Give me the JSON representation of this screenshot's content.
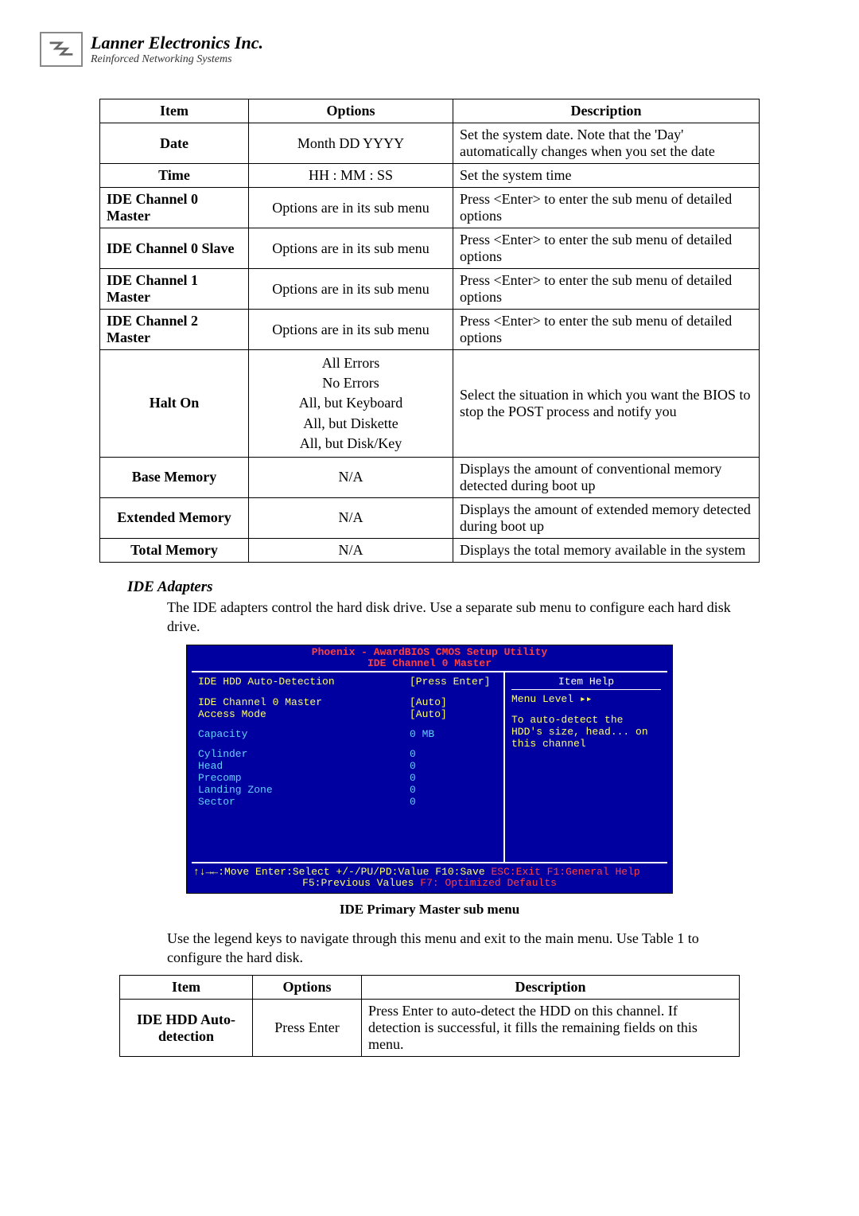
{
  "logo": {
    "title": "Lanner Electronics Inc.",
    "subtitle": "Reinforced Networking Systems"
  },
  "table1": {
    "headers": [
      "Item",
      "Options",
      "Description"
    ],
    "rows": [
      {
        "item": "Date",
        "item_align": "center",
        "opt": "Month DD YYYY",
        "desc": "Set the system date. Note that the 'Day' automatically changes when you set the date"
      },
      {
        "item": "Time",
        "item_align": "center",
        "opt": "HH : MM : SS",
        "desc": "Set the system time"
      },
      {
        "item": "IDE Channel 0 Master",
        "item_align": "left",
        "opt": "Options are in its sub menu",
        "desc": "Press <Enter> to enter the sub menu of detailed options"
      },
      {
        "item": "IDE Channel 0 Slave",
        "item_align": "left",
        "opt": "Options are in its sub menu",
        "desc": "Press <Enter> to enter the sub menu of detailed options"
      },
      {
        "item": "IDE Channel 1 Master",
        "item_align": "left",
        "opt": "Options are in its sub menu",
        "desc": "Press <Enter> to enter the sub menu of detailed options"
      },
      {
        "item": "IDE Channel 2 Master",
        "item_align": "left",
        "opt": "Options are in its sub menu",
        "desc": "Press <Enter> to enter the sub menu of detailed options"
      },
      {
        "item": "Halt On",
        "item_align": "center",
        "opt_multi": [
          "All Errors",
          "No Errors",
          "All, but Keyboard",
          "All, but Diskette",
          "All, but Disk/Key"
        ],
        "desc": "Select the situation in which you want the BIOS to stop the POST process and notify you"
      },
      {
        "item": "Base Memory",
        "item_align": "center",
        "opt": "N/A",
        "desc": "Displays the amount of conventional memory detected during boot up"
      },
      {
        "item": "Extended Memory",
        "item_align": "center",
        "opt": "N/A",
        "desc": "Displays the amount of extended memory detected during boot up"
      },
      {
        "item": "Total Memory",
        "item_align": "center",
        "opt": "N/A",
        "desc": "Displays the total memory available in the system"
      }
    ]
  },
  "section": {
    "heading": "IDE Adapters",
    "body": "The IDE adapters control the hard disk drive. Use a separate sub menu to configure each hard disk drive."
  },
  "bios": {
    "title1": "Phoenix - AwardBIOS CMOS Setup Utility",
    "title2": "IDE Channel 0 Master",
    "left_rows": [
      {
        "label": "IDE HDD Auto-Detection",
        "val": "[Press Enter]",
        "label_color": "yellow",
        "val_color": "yellow"
      },
      {
        "spacer": true
      },
      {
        "label": "IDE Channel 0 Master",
        "val": "[Auto]",
        "label_color": "yellow",
        "val_color": "yellow"
      },
      {
        "label": "Access Mode",
        "val": "[Auto]",
        "label_color": "yellow",
        "val_color": "yellow"
      },
      {
        "spacer": true
      },
      {
        "label": "Capacity",
        "val": "     0 MB",
        "label_color": "blue",
        "val_color": "blue"
      },
      {
        "spacer": true
      },
      {
        "label": "Cylinder",
        "val": "     0",
        "label_color": "blue",
        "val_color": "blue"
      },
      {
        "label": "Head",
        "val": "     0",
        "label_color": "blue",
        "val_color": "blue"
      },
      {
        "label": "Precomp",
        "val": "     0",
        "label_color": "blue",
        "val_color": "blue"
      },
      {
        "label": "Landing Zone",
        "val": "     0",
        "label_color": "blue",
        "val_color": "blue"
      },
      {
        "label": "Sector",
        "val": "     0",
        "label_color": "blue",
        "val_color": "blue"
      }
    ],
    "help_head": "Item Help",
    "help_lines": [
      {
        "text": "Menu Level   ▸▸",
        "color": "yellow"
      },
      {
        "spacer": true
      },
      {
        "text": "To auto-detect the",
        "color": "yellow"
      },
      {
        "text": "HDD's size, head... on",
        "color": "yellow"
      },
      {
        "text": "this channel",
        "color": "yellow"
      }
    ],
    "footer1a": "↑↓→←:Move  Enter:Select  +/-/PU/PD:Value  F10:Save  ",
    "footer1b": "ESC:Exit  F1:General Help",
    "footer2a": "F5:Previous Values            ",
    "footer2b": "F7: Optimized Defaults"
  },
  "caption": "IDE Primary Master sub menu",
  "body2": "Use the legend keys to navigate through this menu and exit to the main menu. Use Table 1 to configure the hard disk.",
  "table2": {
    "headers": [
      "Item",
      "Options",
      "Description"
    ],
    "rows": [
      {
        "item": "IDE HDD Auto-detection",
        "opt": "Press Enter",
        "desc": "Press Enter to auto-detect the HDD on this channel. If detection is successful, it fills the remaining fields on this menu."
      }
    ]
  }
}
